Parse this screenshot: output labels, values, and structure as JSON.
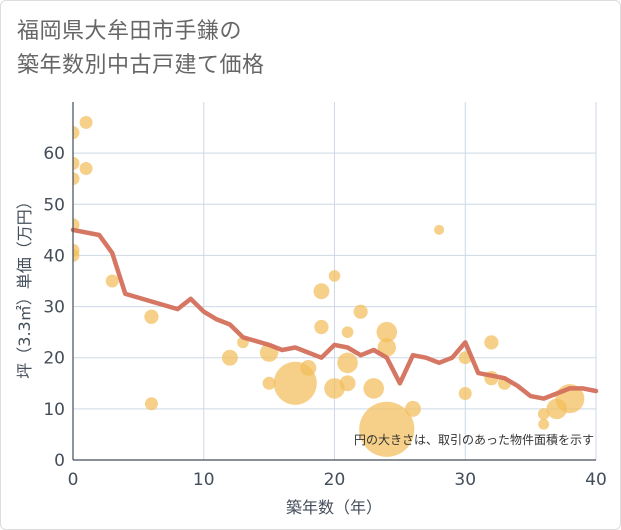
{
  "title_line1": "福岡県大牟田市手鎌の",
  "title_line2": "築年数別中古戸建て価格",
  "note": "円の大きさは、取引のあった物件面積を示す",
  "colors": {
    "line": "#d4705c",
    "bubble": "#f2be5a",
    "grid": "#cdd9e6",
    "axis": "#444e5a"
  },
  "chart_data": {
    "type": "scatter",
    "xlabel": "築年数（年）",
    "ylabel": "坪（3.3㎡）単価（万円）",
    "xlim": [
      0,
      40
    ],
    "ylim": [
      0,
      70
    ],
    "xticks": [
      0,
      10,
      20,
      30,
      40
    ],
    "yticks": [
      0,
      10,
      20,
      30,
      40,
      50,
      60
    ],
    "legend": "none",
    "grid": true,
    "scatter_points": [
      {
        "x": 0,
        "y": 64,
        "s": 1
      },
      {
        "x": 1,
        "y": 66,
        "s": 1
      },
      {
        "x": 0,
        "y": 58,
        "s": 1
      },
      {
        "x": 1,
        "y": 57,
        "s": 1
      },
      {
        "x": 0,
        "y": 55,
        "s": 1
      },
      {
        "x": 0,
        "y": 46,
        "s": 1
      },
      {
        "x": 0,
        "y": 41,
        "s": 1
      },
      {
        "x": 0,
        "y": 40,
        "s": 1
      },
      {
        "x": 3,
        "y": 35,
        "s": 1
      },
      {
        "x": 6,
        "y": 28,
        "s": 1.2
      },
      {
        "x": 6,
        "y": 11,
        "s": 1
      },
      {
        "x": 12,
        "y": 20,
        "s": 1.5
      },
      {
        "x": 13,
        "y": 23,
        "s": 0.8
      },
      {
        "x": 15,
        "y": 21,
        "s": 2
      },
      {
        "x": 15,
        "y": 15,
        "s": 1
      },
      {
        "x": 17,
        "y": 15,
        "s": 11
      },
      {
        "x": 18,
        "y": 18,
        "s": 1.5
      },
      {
        "x": 19,
        "y": 33,
        "s": 1.5
      },
      {
        "x": 19,
        "y": 26,
        "s": 1.2
      },
      {
        "x": 20,
        "y": 36,
        "s": 0.8
      },
      {
        "x": 20,
        "y": 14,
        "s": 2.5
      },
      {
        "x": 21,
        "y": 25,
        "s": 0.8
      },
      {
        "x": 21,
        "y": 19,
        "s": 2.5
      },
      {
        "x": 21,
        "y": 15,
        "s": 1.5
      },
      {
        "x": 22,
        "y": 29,
        "s": 1.2
      },
      {
        "x": 23,
        "y": 14,
        "s": 2.5
      },
      {
        "x": 24,
        "y": 25,
        "s": 2.5
      },
      {
        "x": 24,
        "y": 22,
        "s": 2
      },
      {
        "x": 24,
        "y": 6,
        "s": 18
      },
      {
        "x": 26,
        "y": 10,
        "s": 1.5
      },
      {
        "x": 28,
        "y": 45,
        "s": 0.6
      },
      {
        "x": 30,
        "y": 20,
        "s": 1
      },
      {
        "x": 30,
        "y": 13,
        "s": 1
      },
      {
        "x": 32,
        "y": 23,
        "s": 1.2
      },
      {
        "x": 32,
        "y": 16,
        "s": 1.2
      },
      {
        "x": 33,
        "y": 15,
        "s": 1
      },
      {
        "x": 36,
        "y": 9,
        "s": 0.8
      },
      {
        "x": 36,
        "y": 7,
        "s": 0.7
      },
      {
        "x": 37,
        "y": 10,
        "s": 2.5
      },
      {
        "x": 38,
        "y": 12,
        "s": 5
      }
    ],
    "line_series": {
      "x": [
        0,
        2,
        3,
        4,
        8,
        9,
        10,
        11,
        12,
        13,
        15,
        16,
        17,
        18,
        19,
        20,
        21,
        22,
        23,
        24,
        25,
        26,
        27,
        28,
        29,
        30,
        31,
        32,
        33,
        34,
        35,
        36,
        37,
        38,
        39,
        40
      ],
      "y": [
        45,
        44,
        40.5,
        32.5,
        29.5,
        31.5,
        29,
        27.5,
        26.5,
        24,
        22.5,
        21.5,
        22,
        21,
        20,
        22.5,
        22,
        20.5,
        21.5,
        20,
        15,
        20.5,
        20,
        19,
        20,
        23,
        17,
        16.5,
        16,
        14.5,
        12.5,
        12,
        13,
        14,
        14,
        13.5
      ]
    }
  }
}
